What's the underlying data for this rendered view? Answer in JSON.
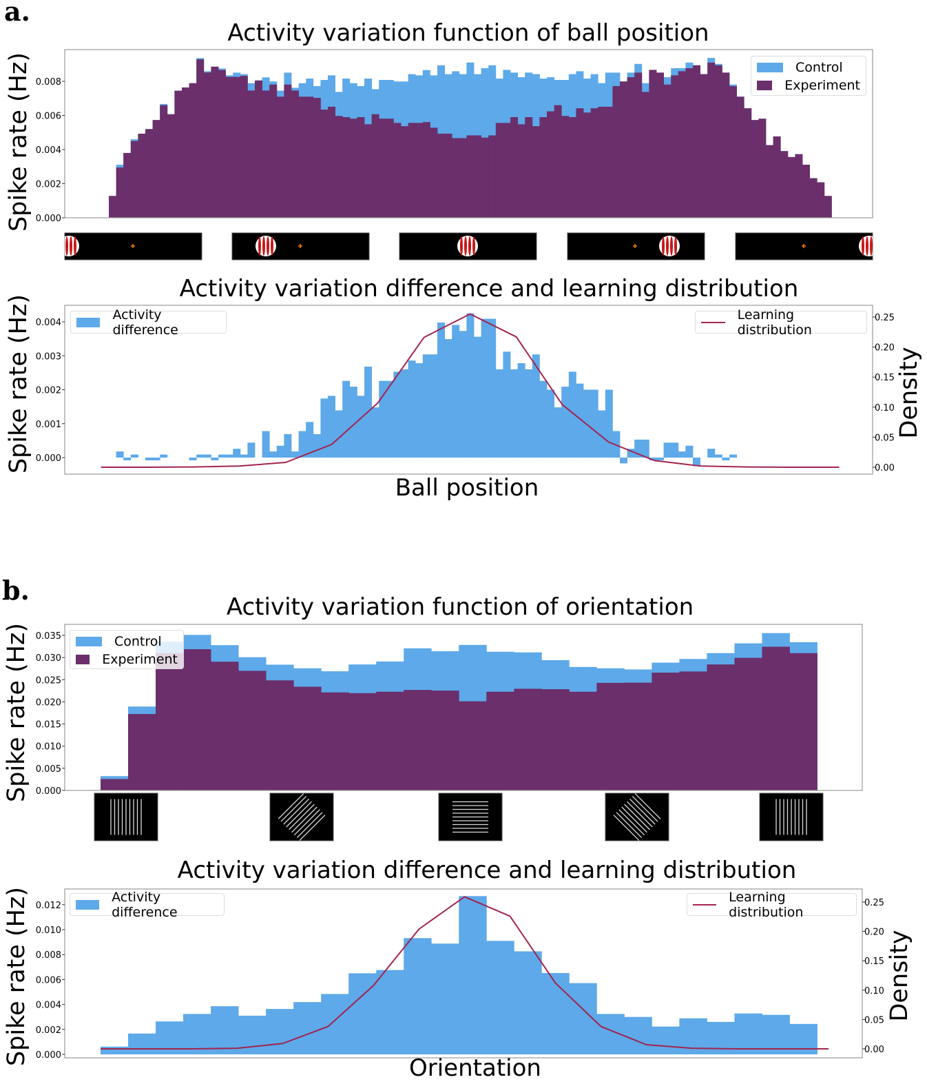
{
  "panels": {
    "a": "a.",
    "b": "b."
  },
  "colors": {
    "control": "#5DA9E9",
    "experiment": "#6B2F6B",
    "learning": "#A3234F",
    "stimulus_bg": "#000000",
    "ball": "#C81818",
    "cross": "#FF8000"
  },
  "legend": {
    "control": "Control",
    "experiment": "Experiment",
    "difference": "Activity difference",
    "learning": "Learning distribution"
  },
  "chart_data": [
    {
      "id": "a1",
      "type": "bar",
      "title": "Activity variation function of ball position",
      "xlabel": "",
      "ylabel": "Spike rate (Hz)",
      "ylim": [
        0,
        0.0098
      ],
      "yticks": [
        "0.000",
        "0.002",
        "0.004",
        "0.006",
        "0.008"
      ],
      "legend_position": "top-right",
      "x": "bin index (ball position)",
      "series": [
        {
          "name": "Control",
          "values": [
            0.00128,
            0.00311,
            0.0038,
            0.0046,
            0.00493,
            0.0052,
            0.00573,
            0.00667,
            0.00607,
            0.00745,
            0.00764,
            0.00789,
            0.00936,
            0.00859,
            0.00886,
            0.00875,
            0.00835,
            0.00851,
            0.00842,
            0.00789,
            0.00805,
            0.00823,
            0.00799,
            0.00745,
            0.00851,
            0.00762,
            0.00789,
            0.00816,
            0.00772,
            0.00808,
            0.00835,
            0.00738,
            0.00816,
            0.00789,
            0.00772,
            0.00816,
            0.00754,
            0.00808,
            0.00808,
            0.00799,
            0.00799,
            0.00842,
            0.00835,
            0.00866,
            0.00835,
            0.00894,
            0.00842,
            0.00859,
            0.00842,
            0.0091,
            0.00842,
            0.00877,
            0.00894,
            0.00816,
            0.00867,
            0.00851,
            0.00824,
            0.00851,
            0.00842,
            0.00816,
            0.00824,
            0.00808,
            0.00808,
            0.00842,
            0.00859,
            0.00816,
            0.00842,
            0.00789,
            0.00851,
            0.00851,
            0.00799,
            0.00851,
            0.00902,
            0.00789,
            0.00867,
            0.00851,
            0.00824,
            0.00877,
            0.00877,
            0.0091,
            0.00894,
            0.00842,
            0.00937,
            0.00902,
            0.00851,
            0.00781,
            0.0071,
            0.00642,
            0.00573,
            0.00581,
            0.00426,
            0.00477,
            0.00391,
            0.00356,
            0.00373,
            0.00311,
            0.00232,
            0.00208,
            0.00128
          ]
        },
        {
          "name": "Experiment",
          "values": [
            0.00128,
            0.00295,
            0.0038,
            0.0045,
            0.00493,
            0.0052,
            0.00573,
            0.0066,
            0.00607,
            0.00745,
            0.00764,
            0.00789,
            0.00929,
            0.00852,
            0.00886,
            0.00866,
            0.00826,
            0.00826,
            0.00832,
            0.00746,
            0.00805,
            0.00746,
            0.00781,
            0.0071,
            0.00781,
            0.00746,
            0.0071,
            0.0071,
            0.00703,
            0.00634,
            0.00651,
            0.00597,
            0.0059,
            0.00581,
            0.0059,
            0.00548,
            0.00607,
            0.00581,
            0.00581,
            0.00556,
            0.00537,
            0.00556,
            0.00556,
            0.00561,
            0.00528,
            0.00493,
            0.00493,
            0.00467,
            0.00467,
            0.00483,
            0.00483,
            0.0047,
            0.00483,
            0.00556,
            0.00556,
            0.0059,
            0.00548,
            0.0059,
            0.00537,
            0.0059,
            0.00624,
            0.0066,
            0.00597,
            0.0059,
            0.00642,
            0.00617,
            0.00642,
            0.00651,
            0.00651,
            0.00772,
            0.00799,
            0.00824,
            0.00851,
            0.00738,
            0.00867,
            0.00851,
            0.00781,
            0.00835,
            0.00859,
            0.00877,
            0.00894,
            0.00842,
            0.0091,
            0.00894,
            0.00851,
            0.00772,
            0.0071,
            0.00642,
            0.00573,
            0.00581,
            0.00426,
            0.00477,
            0.00391,
            0.00356,
            0.00373,
            0.00311,
            0.00232,
            0.00208,
            0.00128
          ]
        }
      ]
    },
    {
      "id": "a2",
      "type": "bar",
      "title": "Activity variation difference and learning distribution",
      "xlabel": "Ball position",
      "ylabel": "Spike rate (Hz)",
      "ylabel_right": "Density",
      "ylim": [
        -0.0005,
        0.0045
      ],
      "yticks": [
        "0.000",
        "0.001",
        "0.002",
        "0.003",
        "0.004"
      ],
      "ylim_right": [
        -0.015,
        0.265
      ],
      "yticks_right": [
        "0.00",
        "0.05",
        "0.10",
        "0.15",
        "0.20",
        "0.25"
      ],
      "legend_position": "top-left / top-right",
      "series": [
        {
          "name": "Activity difference",
          "type": "bar",
          "values": [
            0,
            0.00018,
            -8e-05,
            9e-05,
            0,
            -8e-05,
            -8e-05,
            9e-05,
            0,
            0,
            0,
            -8e-05,
            9e-05,
            9e-05,
            -8e-05,
            9e-05,
            9e-05,
            0.00026,
            9e-05,
            0.00044,
            0,
            0.00078,
            0.00018,
            0.00035,
            0.00069,
            0.00018,
            0.00078,
            0.00105,
            0.00069,
            0.00174,
            0.00182,
            0.00139,
            0.00226,
            0.00209,
            0.00182,
            0.00268,
            0.00148,
            0.00226,
            0.00226,
            0.00253,
            0.0026,
            0.00286,
            0.00278,
            0.00304,
            0.00304,
            0.00398,
            0.00349,
            0.00391,
            0.00373,
            0.00425,
            0.00356,
            0.00409,
            0.00409,
            0.0026,
            0.00312,
            0.0026,
            0.00278,
            0.0026,
            0.00304,
            0.00226,
            0.002,
            0.00148,
            0.00209,
            0.00253,
            0.00218,
            0.002,
            0.002,
            0.00139,
            0.002,
            0.00078,
            -0.00017,
            0.00026,
            0.00053,
            0.00053,
            -8e-05,
            -8e-05,
            0.00044,
            0.00044,
            0.00018,
            0.00035,
            -0.00025,
            0,
            0.00026,
            9e-05,
            -8e-05,
            9e-05,
            0,
            0,
            0,
            0,
            0,
            0,
            0,
            0,
            0,
            0,
            0,
            0,
            0
          ]
        },
        {
          "name": "Learning distribution",
          "type": "line",
          "axis": "right",
          "values": [
            0,
            0,
            0.0005,
            0.002,
            0.008,
            0.038,
            0.107,
            0.216,
            0.255,
            0.217,
            0.104,
            0.042,
            0.011,
            0.002,
            0.0005,
            0,
            0
          ]
        }
      ]
    },
    {
      "id": "b1",
      "type": "bar",
      "title": "Activity variation function of orientation",
      "xlabel": "",
      "ylabel": "Spike rate (Hz)",
      "ylim": [
        0,
        0.0375
      ],
      "yticks": [
        "0.000",
        "0.005",
        "0.010",
        "0.015",
        "0.020",
        "0.025",
        "0.030",
        "0.035"
      ],
      "legend_position": "top-left",
      "series": [
        {
          "name": "Control",
          "values": [
            0.00323,
            0.01894,
            0.03357,
            0.03511,
            0.0328,
            0.03008,
            0.02839,
            0.02757,
            0.0269,
            0.02844,
            0.02911,
            0.03208,
            0.03142,
            0.03285,
            0.03131,
            0.03116,
            0.02941,
            0.02787,
            0.02757,
            0.02731,
            0.02885,
            0.02967,
            0.031,
            0.03321,
            0.03552,
            0.03347
          ]
        },
        {
          "name": "Experiment",
          "values": [
            0.00257,
            0.01725,
            0.031,
            0.03188,
            0.02906,
            0.027,
            0.02485,
            0.02341,
            0.02213,
            0.02197,
            0.02228,
            0.02269,
            0.02254,
            0.02012,
            0.02228,
            0.02295,
            0.02285,
            0.02228,
            0.02428,
            0.02433,
            0.02659,
            0.02685,
            0.02844,
            0.02993,
            0.03244,
            0.031
          ]
        }
      ]
    },
    {
      "id": "b2",
      "type": "bar",
      "title": "Activity variation difference and learning distribution",
      "xlabel": "Orientation",
      "ylabel": "Spike rate (Hz)",
      "ylabel_right": "Density",
      "ylim": [
        -0.0003,
        0.0131
      ],
      "yticks": [
        "0.000",
        "0.002",
        "0.004",
        "0.006",
        "0.008",
        "0.010",
        "0.012"
      ],
      "ylim_right": [
        -0.005,
        0.27
      ],
      "yticks_right": [
        "0.00",
        "0.05",
        "0.10",
        "0.15",
        "0.20",
        "0.25"
      ],
      "legend_position": "top-left / top-right",
      "series": [
        {
          "name": "Activity difference",
          "type": "bar",
          "values": [
            0.00062,
            0.00167,
            0.00264,
            0.00324,
            0.00386,
            0.0031,
            0.00364,
            0.00419,
            0.00484,
            0.0065,
            0.00676,
            0.00932,
            0.00888,
            0.01269,
            0.0091,
            0.00826,
            0.00652,
            0.00571,
            0.00324,
            0.003,
            0.00223,
            0.00289,
            0.0026,
            0.00328,
            0.00317,
            0.00244
          ]
        },
        {
          "name": "Learning distribution",
          "type": "line",
          "axis": "right",
          "values": [
            0,
            0,
            0,
            0.001,
            0.009,
            0.038,
            0.108,
            0.204,
            0.259,
            0.226,
            0.112,
            0.038,
            0.007,
            0.001,
            0,
            0,
            0
          ]
        }
      ]
    }
  ],
  "stimuli": {
    "ball_frames": [
      {
        "ball": "left-edge"
      },
      {
        "ball": "left"
      },
      {
        "ball": "center"
      },
      {
        "ball": "right"
      },
      {
        "ball": "right-edge"
      }
    ],
    "grating_orientations_deg": [
      90,
      45,
      0,
      135,
      90
    ]
  }
}
